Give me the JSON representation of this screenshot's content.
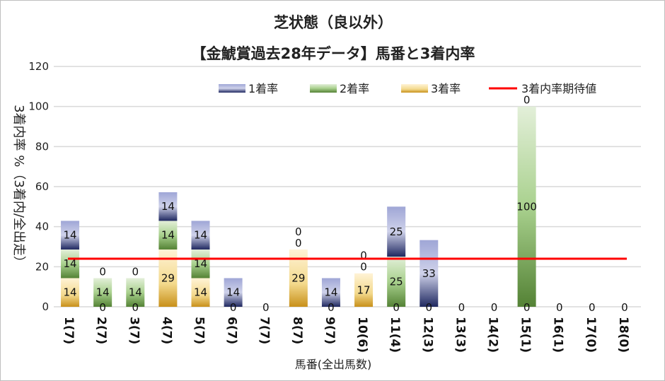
{
  "chart_data": {
    "type": "bar",
    "stacked": true,
    "title": "芝状態（良以外）",
    "subtitle": "【金鯱賞過去28年データ】馬番と3着内率",
    "xlabel": "馬番(全出馬数)",
    "ylabel": "3着内率 %（3着内/全出走）",
    "ylim": [
      0,
      120
    ],
    "yticks": [
      0,
      20,
      40,
      60,
      80,
      100,
      120
    ],
    "grid": true,
    "legend_position": "top",
    "categories": [
      "1(7)",
      "2(7)",
      "3(7)",
      "4(7)",
      "5(7)",
      "6(7)",
      "7(7)",
      "8(7)",
      "9(7)",
      "10(6)",
      "11(4)",
      "12(3)",
      "13(3)",
      "14(2)",
      "15(1)",
      "16(1)",
      "17(0)",
      "18(0)"
    ],
    "series": [
      {
        "name": "3着率",
        "color": "#d9a830",
        "values": [
          14.3,
          0,
          0,
          28.6,
          14.3,
          0,
          0,
          28.6,
          0,
          16.7,
          0,
          0,
          0,
          0,
          0,
          0,
          0,
          0
        ],
        "labels": [
          "14",
          "0",
          "0",
          "29",
          "14",
          "0",
          "0",
          "29",
          "0",
          "17",
          "0",
          "0",
          "0",
          "0",
          "0",
          "0",
          "0",
          "0"
        ]
      },
      {
        "name": "2着率",
        "color": "#6aa84f",
        "values": [
          14.3,
          14.3,
          14.3,
          14.3,
          14.3,
          0,
          0,
          0,
          0,
          0,
          25,
          0,
          0,
          0,
          100,
          0,
          0,
          0
        ],
        "labels": [
          "14",
          "14",
          "14",
          "14",
          "14",
          "0",
          "0",
          "0",
          "0",
          "0",
          "25",
          "0",
          "0",
          "0",
          "100",
          "0",
          "0",
          "0"
        ]
      },
      {
        "name": "1着率",
        "color": "#3c4a9a",
        "values": [
          14.3,
          0,
          0,
          14.3,
          14.3,
          14.3,
          0,
          0,
          14.3,
          0,
          25,
          33.3,
          0,
          0,
          0,
          0,
          0,
          0
        ],
        "labels": [
          "14",
          "0",
          "0",
          "14",
          "14",
          "14",
          "0",
          "0",
          "14",
          "0",
          "25",
          "33",
          "0",
          "0",
          "0",
          "0",
          "0",
          "0"
        ]
      }
    ],
    "expected_line": {
      "name": "3着内率期待値",
      "value": 24,
      "color": "#ff0000"
    },
    "legend_order": [
      "1着率",
      "2着率",
      "3着率",
      "3着内率期待値"
    ]
  }
}
